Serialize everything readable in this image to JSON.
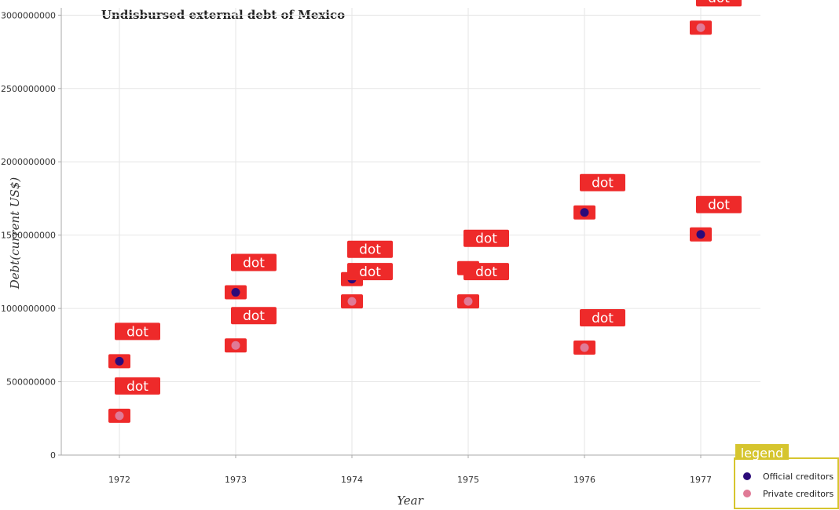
{
  "chart_data": {
    "type": "scatter",
    "title": "Undisbursed external debt of Mexico",
    "xlabel": "Year",
    "ylabel": "Debt(current US$)",
    "categories": [
      "1972",
      "1973",
      "1974",
      "1975",
      "1976",
      "1977"
    ],
    "ylim": [
      0,
      3050000000
    ],
    "yticks": [
      0,
      500000000,
      1000000000,
      1500000000,
      2000000000,
      2500000000,
      3000000000
    ],
    "ytick_labels": [
      "0",
      "500000000",
      "1000000000",
      "1500000000",
      "2000000000",
      "2500000000",
      "3000000000"
    ],
    "grid": true,
    "legend": {
      "title": "legend",
      "position": "bottom-right"
    },
    "point_label": "dot",
    "series": [
      {
        "name": "Official creditors",
        "color": "#2b0a7a",
        "values": [
          640000000,
          1110000000,
          1200000000,
          1275000000,
          1655000000,
          1505000000
        ]
      },
      {
        "name": "Private creditors",
        "color": "#e07a96",
        "values": [
          268000000,
          748000000,
          1048000000,
          1048000000,
          733000000,
          2915000000
        ]
      }
    ]
  },
  "colors": {
    "badge": "#ee2a2a",
    "legend_title_bg": "#d6c52e",
    "legend_border": "#d6c52e"
  }
}
